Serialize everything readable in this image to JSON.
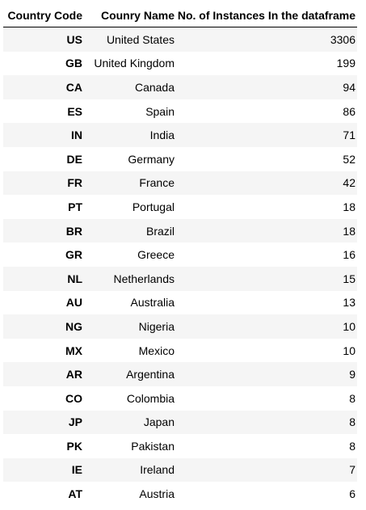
{
  "table": {
    "headers": {
      "code": "Country Code",
      "name": "Counry Name",
      "count": "No. of Instances In the dataframe"
    },
    "rows": [
      {
        "code": "US",
        "name": "United States",
        "count": "3306"
      },
      {
        "code": "GB",
        "name": "United Kingdom",
        "count": "199"
      },
      {
        "code": "CA",
        "name": "Canada",
        "count": "94"
      },
      {
        "code": "ES",
        "name": "Spain",
        "count": "86"
      },
      {
        "code": "IN",
        "name": "India",
        "count": "71"
      },
      {
        "code": "DE",
        "name": "Germany",
        "count": "52"
      },
      {
        "code": "FR",
        "name": "France",
        "count": "42"
      },
      {
        "code": "PT",
        "name": "Portugal",
        "count": "18"
      },
      {
        "code": "BR",
        "name": "Brazil",
        "count": "18"
      },
      {
        "code": "GR",
        "name": "Greece",
        "count": "16"
      },
      {
        "code": "NL",
        "name": "Netherlands",
        "count": "15"
      },
      {
        "code": "AU",
        "name": "Australia",
        "count": "13"
      },
      {
        "code": "NG",
        "name": "Nigeria",
        "count": "10"
      },
      {
        "code": "MX",
        "name": "Mexico",
        "count": "10"
      },
      {
        "code": "AR",
        "name": "Argentina",
        "count": "9"
      },
      {
        "code": "CO",
        "name": "Colombia",
        "count": "8"
      },
      {
        "code": "JP",
        "name": "Japan",
        "count": "8"
      },
      {
        "code": "PK",
        "name": "Pakistan",
        "count": "8"
      },
      {
        "code": "IE",
        "name": "Ireland",
        "count": "7"
      },
      {
        "code": "AT",
        "name": "Austria",
        "count": "6"
      }
    ]
  },
  "colors": {
    "stripe": "#f5f5f5",
    "header_rule": "#000000",
    "text": "#000000"
  }
}
